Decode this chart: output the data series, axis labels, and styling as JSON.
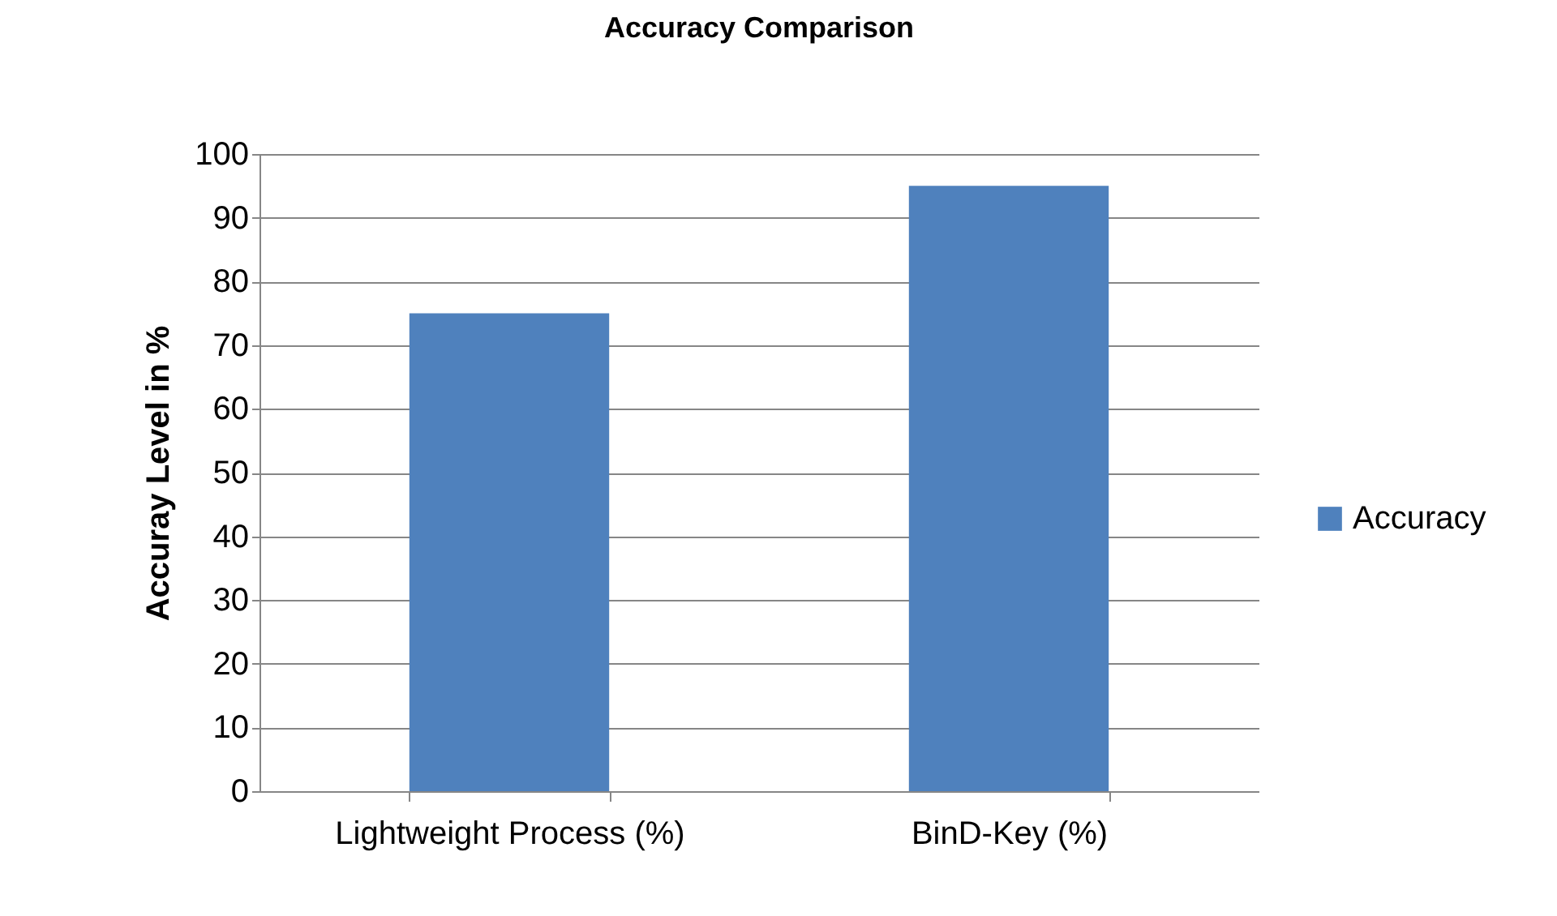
{
  "chart_data": {
    "type": "bar",
    "title": "Accuracy Comparison",
    "ylabel": "Accuray Level in %",
    "categories": [
      "Lightweight Process (%)",
      "BinD-Key (%)"
    ],
    "series": [
      {
        "name": "Accuracy",
        "color": "#4f81bd",
        "values": [
          75,
          95
        ]
      }
    ],
    "ylim": [
      0,
      100
    ],
    "yticks": [
      0,
      10,
      20,
      30,
      40,
      50,
      60,
      70,
      80,
      90,
      100
    ],
    "grid": "y",
    "legend": "right"
  }
}
